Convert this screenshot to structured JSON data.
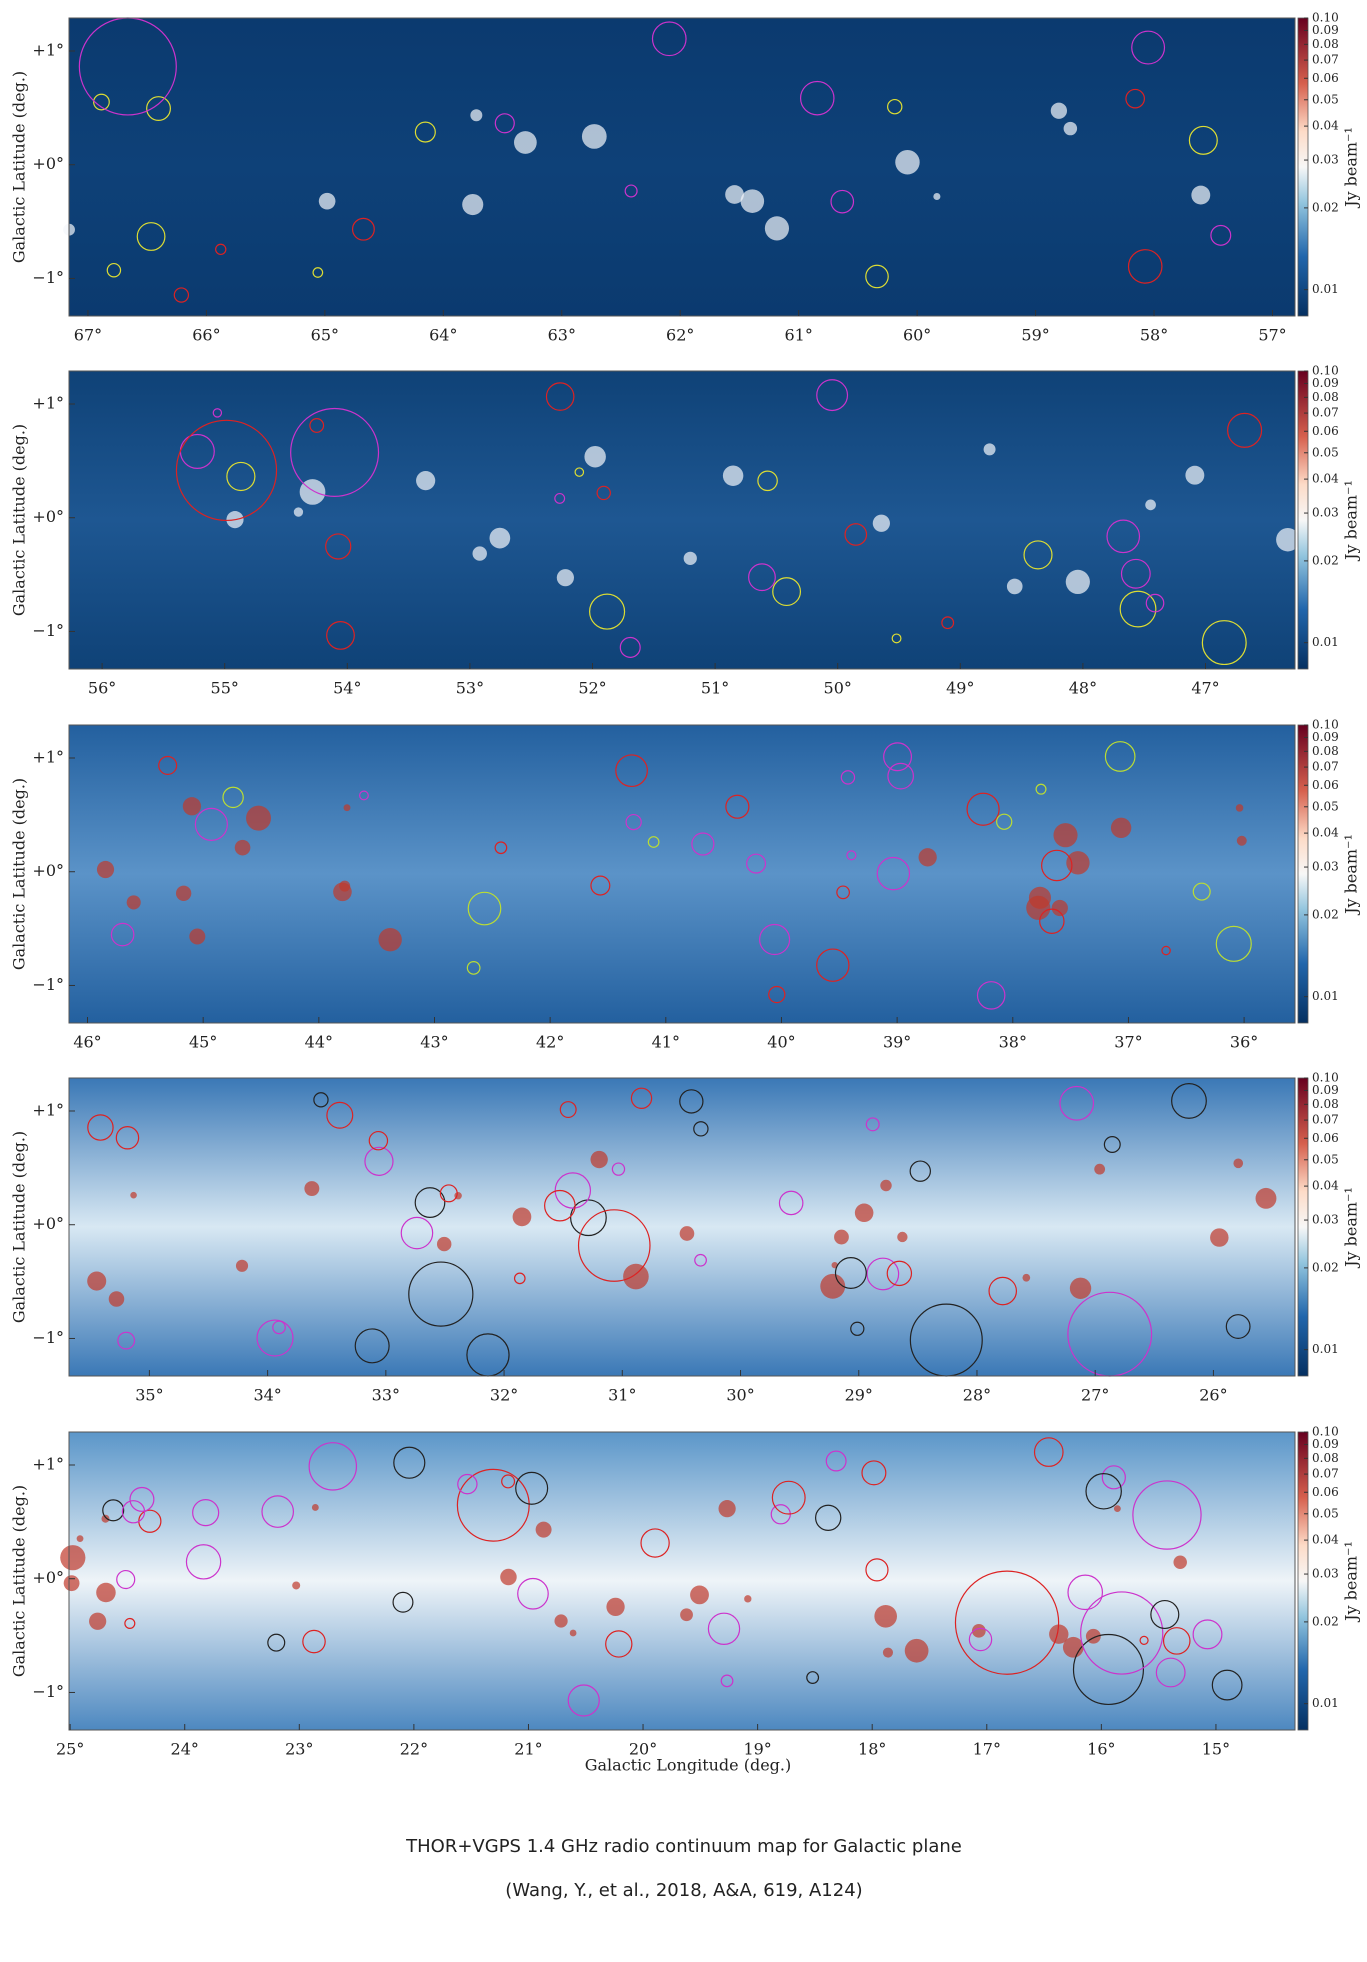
{
  "panels": [
    {
      "xlim": [
        67.16,
        56.81
      ],
      "ylim": [
        -1.33,
        1.29
      ],
      "xticks": [
        {
          "value": 67,
          "label": "67°"
        },
        {
          "value": 66,
          "label": "66°"
        },
        {
          "value": 65,
          "label": "65°"
        },
        {
          "value": 64,
          "label": "64°"
        },
        {
          "value": 63,
          "label": "63°"
        },
        {
          "value": 62,
          "label": "62°"
        },
        {
          "value": 61,
          "label": "61°"
        },
        {
          "value": 60,
          "label": "60°"
        },
        {
          "value": 59,
          "label": "59°"
        },
        {
          "value": 58,
          "label": "58°"
        },
        {
          "value": 57,
          "label": "57°"
        }
      ],
      "yticks": [
        {
          "value": 1,
          "label": "+1°"
        },
        {
          "value": 0,
          "label": "+0°"
        },
        {
          "value": -1,
          "label": "−1°"
        }
      ],
      "ylabel": "Galactic Latitude (deg.)",
      "colorbar": {
        "label": "Jy beam⁻¹",
        "log": true,
        "lim": [
          0.008,
          0.1
        ],
        "ticks": [
          0.01,
          0.02,
          0.03,
          0.04,
          0.05,
          0.06,
          0.07,
          0.08,
          0.09,
          {
            "value": 0.1,
            "label": "0.10"
          }
        ]
      }
    },
    {
      "xlim": [
        56.27,
        46.27
      ],
      "ylim": [
        -1.33,
        1.29
      ],
      "xticks": [
        {
          "value": 56,
          "label": "56°"
        },
        {
          "value": 55,
          "label": "55°"
        },
        {
          "value": 54,
          "label": "54°"
        },
        {
          "value": 53,
          "label": "53°"
        },
        {
          "value": 52,
          "label": "52°"
        },
        {
          "value": 51,
          "label": "51°"
        },
        {
          "value": 50,
          "label": "50°"
        },
        {
          "value": 49,
          "label": "49°"
        },
        {
          "value": 48,
          "label": "48°"
        },
        {
          "value": 47,
          "label": "47°"
        }
      ],
      "yticks": [
        {
          "value": 1,
          "label": "+1°"
        },
        {
          "value": 0,
          "label": "+0°"
        },
        {
          "value": -1,
          "label": "−1°"
        }
      ],
      "ylabel": "Galactic Latitude (deg.)",
      "colorbar": {
        "label": "Jy beam⁻¹",
        "log": true,
        "lim": [
          0.008,
          0.1
        ],
        "ticks": [
          0.01,
          0.02,
          0.03,
          0.04,
          0.05,
          0.06,
          0.07,
          0.08,
          0.09,
          {
            "value": 0.1,
            "label": "0.10"
          }
        ]
      }
    },
    {
      "xlim": [
        46.16,
        35.56
      ],
      "ylim": [
        -1.33,
        1.29
      ],
      "xticks": [
        {
          "value": 46,
          "label": "46°"
        },
        {
          "value": 45,
          "label": "45°"
        },
        {
          "value": 44,
          "label": "44°"
        },
        {
          "value": 43,
          "label": "43°"
        },
        {
          "value": 42,
          "label": "42°"
        },
        {
          "value": 41,
          "label": "41°"
        },
        {
          "value": 40,
          "label": "40°"
        },
        {
          "value": 39,
          "label": "39°"
        },
        {
          "value": 38,
          "label": "38°"
        },
        {
          "value": 37,
          "label": "37°"
        },
        {
          "value": 36,
          "label": "36°"
        }
      ],
      "yticks": [
        {
          "value": 1,
          "label": "+1°"
        },
        {
          "value": 0,
          "label": "+0°"
        },
        {
          "value": -1,
          "label": "−1°"
        }
      ],
      "ylabel": "Galactic Latitude (deg.)",
      "colorbar": {
        "label": "Jy beam⁻¹",
        "log": true,
        "lim": [
          0.008,
          0.1
        ],
        "ticks": [
          0.01,
          0.02,
          0.03,
          0.04,
          0.05,
          0.06,
          0.07,
          0.08,
          0.09,
          {
            "value": 0.1,
            "label": "0.10"
          }
        ]
      }
    },
    {
      "xlim": [
        35.68,
        25.31
      ],
      "ylim": [
        -1.33,
        1.29
      ],
      "xticks": [
        {
          "value": 35,
          "label": "35°"
        },
        {
          "value": 34,
          "label": "34°"
        },
        {
          "value": 33,
          "label": "33°"
        },
        {
          "value": 32,
          "label": "32°"
        },
        {
          "value": 31,
          "label": "31°"
        },
        {
          "value": 30,
          "label": "30°"
        },
        {
          "value": 29,
          "label": "29°"
        },
        {
          "value": 28,
          "label": "28°"
        },
        {
          "value": 27,
          "label": "27°"
        },
        {
          "value": 26,
          "label": "26°"
        }
      ],
      "yticks": [
        {
          "value": 1,
          "label": "+1°"
        },
        {
          "value": 0,
          "label": "+0°"
        },
        {
          "value": -1,
          "label": "−1°"
        }
      ],
      "ylabel": "Galactic Latitude (deg.)",
      "colorbar": {
        "label": "Jy beam⁻¹",
        "log": true,
        "lim": [
          0.008,
          0.1
        ],
        "ticks": [
          0.01,
          0.02,
          0.03,
          0.04,
          0.05,
          0.06,
          0.07,
          0.08,
          0.09,
          {
            "value": 0.1,
            "label": "0.10"
          }
        ]
      }
    },
    {
      "xlim": [
        25.01,
        14.31
      ],
      "ylim": [
        -1.33,
        1.29
      ],
      "xticks": [
        {
          "value": 25,
          "label": "25°"
        },
        {
          "value": 24,
          "label": "24°"
        },
        {
          "value": 23,
          "label": "23°"
        },
        {
          "value": 22,
          "label": "22°"
        },
        {
          "value": 21,
          "label": "21°"
        },
        {
          "value": 20,
          "label": "20°"
        },
        {
          "value": 19,
          "label": "19°"
        },
        {
          "value": 18,
          "label": "18°"
        },
        {
          "value": 17,
          "label": "17°"
        },
        {
          "value": 16,
          "label": "16°"
        },
        {
          "value": 15,
          "label": "15°"
        }
      ],
      "yticks": [
        {
          "value": 1,
          "label": "+1°"
        },
        {
          "value": 0,
          "label": "+0°"
        },
        {
          "value": -1,
          "label": "−1°"
        }
      ],
      "ylabel": "Galactic Latitude (deg.)",
      "colorbar": {
        "label": "Jy beam⁻¹",
        "log": true,
        "lim": [
          0.008,
          0.1
        ],
        "ticks": [
          0.01,
          0.02,
          0.03,
          0.04,
          0.05,
          0.06,
          0.07,
          0.08,
          0.09,
          {
            "value": 0.1,
            "label": "0.10"
          }
        ]
      }
    }
  ],
  "xlabel": "Galactic Longitude (deg.)",
  "caption": [
    "THOR+VGPS 1.4 GHz radio continuum map for Galactic plane",
    "(Wang, Y., et al., 2018, A&A, 619, A124)"
  ]
}
